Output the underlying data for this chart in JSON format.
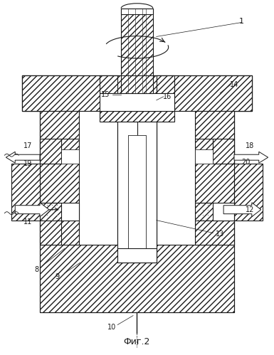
{
  "figure_label": "Фиг.2",
  "bg_color": "#ffffff",
  "lc": "#1a1a1a",
  "hatch_density": "////",
  "fig_w": 3.85,
  "fig_h": 4.99,
  "dpi": 100
}
